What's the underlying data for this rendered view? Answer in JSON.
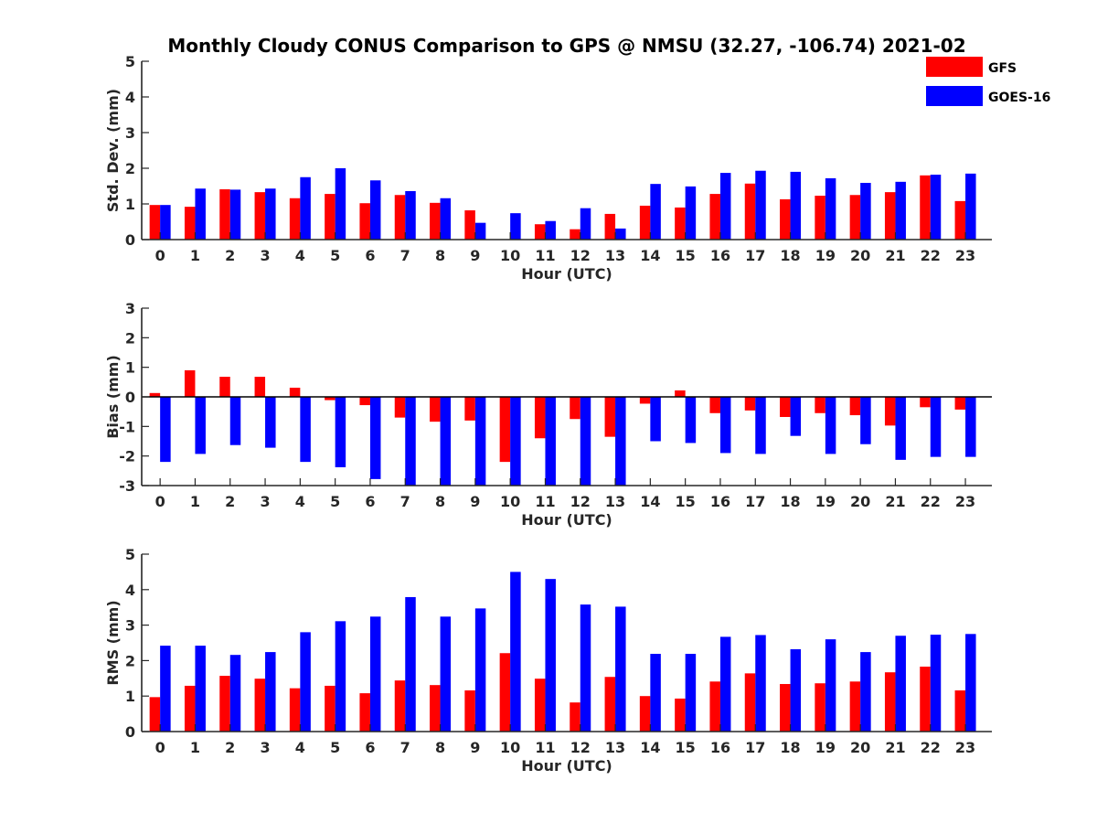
{
  "chart_data": {
    "type": "bar",
    "title": "Monthly Cloudy CONUS Comparison to GPS @ NMSU (32.27, -106.74) 2021-02",
    "legend": {
      "position": "top-right",
      "entries": [
        "GFS",
        "GOES-16"
      ]
    },
    "series_colors": {
      "GFS": "#ff0000",
      "GOES-16": "#0000ff"
    },
    "panels": [
      {
        "ylabel": "Std. Dev. (mm)",
        "xlabel": "Hour (UTC)",
        "ylim": [
          0,
          5
        ],
        "yticks": [
          0,
          1,
          2,
          3,
          4,
          5
        ],
        "categories": [
          "0",
          "1",
          "2",
          "3",
          "4",
          "5",
          "6",
          "7",
          "8",
          "9",
          "10",
          "11",
          "12",
          "13",
          "14",
          "15",
          "16",
          "17",
          "18",
          "19",
          "20",
          "21",
          "22",
          "23"
        ],
        "series": [
          {
            "name": "GFS",
            "values": [
              0.97,
              0.92,
              1.41,
              1.33,
              1.16,
              1.28,
              1.02,
              1.25,
              1.03,
              0.82,
              0.0,
              0.43,
              0.29,
              0.72,
              0.95,
              0.9,
              1.28,
              1.57,
              1.13,
              1.23,
              1.25,
              1.33,
              1.8,
              1.08
            ]
          },
          {
            "name": "GOES-16",
            "values": [
              0.97,
              1.43,
              1.4,
              1.43,
              1.75,
              2.0,
              1.66,
              1.36,
              1.16,
              0.47,
              0.74,
              0.52,
              0.88,
              0.31,
              1.56,
              1.49,
              1.87,
              1.93,
              1.9,
              1.72,
              1.59,
              1.62,
              1.82,
              1.85
            ]
          }
        ]
      },
      {
        "ylabel": "Bias (mm)",
        "xlabel": "Hour (UTC)",
        "ylim": [
          -3,
          3
        ],
        "yticks": [
          -3,
          -2,
          -1,
          0,
          1,
          2,
          3
        ],
        "zero_line": true,
        "categories": [
          "0",
          "1",
          "2",
          "3",
          "4",
          "5",
          "6",
          "7",
          "8",
          "9",
          "10",
          "11",
          "12",
          "13",
          "14",
          "15",
          "16",
          "17",
          "18",
          "19",
          "20",
          "21",
          "22",
          "23"
        ],
        "series": [
          {
            "name": "GFS",
            "values": [
              0.13,
              0.9,
              0.68,
              0.68,
              0.31,
              -0.11,
              -0.28,
              -0.7,
              -0.84,
              -0.8,
              -2.2,
              -1.4,
              -0.75,
              -1.35,
              -0.23,
              0.22,
              -0.55,
              -0.46,
              -0.68,
              -0.55,
              -0.62,
              -0.97,
              -0.35,
              -0.43
            ]
          },
          {
            "name": "GOES-16",
            "values": [
              -2.2,
              -1.93,
              -1.63,
              -1.72,
              -2.2,
              -2.38,
              -2.78,
              -3.0,
              -3.0,
              -3.0,
              -3.0,
              -3.0,
              -3.0,
              -3.0,
              -1.5,
              -1.56,
              -1.9,
              -1.93,
              -1.32,
              -1.93,
              -1.6,
              -2.13,
              -2.03,
              -2.03
            ]
          }
        ]
      },
      {
        "ylabel": "RMS (mm)",
        "xlabel": "Hour (UTC)",
        "ylim": [
          0,
          5
        ],
        "yticks": [
          0,
          1,
          2,
          3,
          4,
          5
        ],
        "categories": [
          "0",
          "1",
          "2",
          "3",
          "4",
          "5",
          "6",
          "7",
          "8",
          "9",
          "10",
          "11",
          "12",
          "13",
          "14",
          "15",
          "16",
          "17",
          "18",
          "19",
          "20",
          "21",
          "22",
          "23"
        ],
        "series": [
          {
            "name": "GFS",
            "values": [
              0.97,
              1.29,
              1.57,
              1.49,
              1.22,
              1.29,
              1.08,
              1.44,
              1.31,
              1.16,
              2.21,
              1.49,
              0.82,
              1.54,
              1.0,
              0.93,
              1.41,
              1.64,
              1.34,
              1.36,
              1.41,
              1.67,
              1.83,
              1.16
            ]
          },
          {
            "name": "GOES-16",
            "values": [
              2.42,
              2.42,
              2.16,
              2.24,
              2.8,
              3.11,
              3.24,
              3.79,
              3.24,
              3.47,
              4.5,
              4.3,
              3.58,
              3.52,
              2.19,
              2.19,
              2.67,
              2.72,
              2.32,
              2.6,
              2.24,
              2.7,
              2.73,
              2.75
            ]
          }
        ]
      }
    ]
  }
}
